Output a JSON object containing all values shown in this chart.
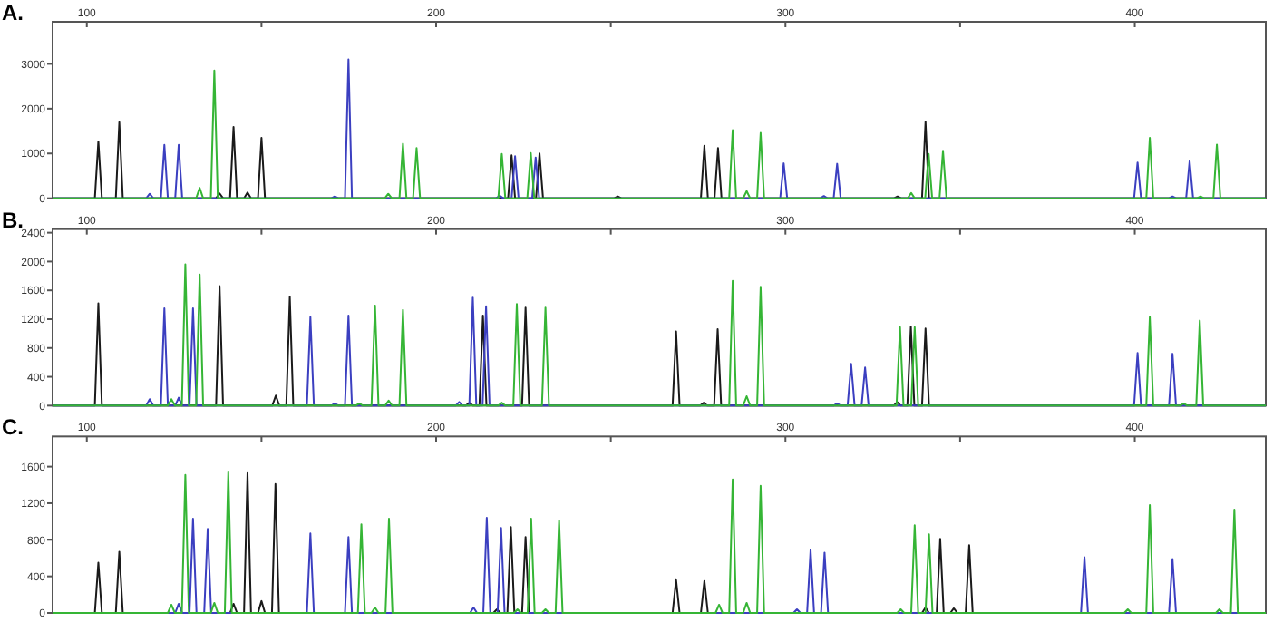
{
  "chart_data": [
    {
      "type": "line",
      "title": "A.",
      "xlim": [
        90.2,
        437.5
      ],
      "xticks": [
        100,
        {
          "value": 150,
          "label": null
        },
        200,
        {
          "value": 250,
          "label": null
        },
        300,
        {
          "value": 350,
          "label": null
        },
        400
      ],
      "ylim": [
        0,
        3940
      ],
      "yticks": [
        0,
        1000,
        2000,
        3000
      ],
      "series": [
        {
          "color": "#1a1a1a",
          "x": [
            90.2,
            102.3,
            103.3,
            104.3,
            108.3,
            109.3,
            110.3,
            137,
            138,
            139,
            141,
            142,
            143,
            145,
            146,
            147,
            149,
            150,
            151,
            220.6,
            221.6,
            222.6,
            228.6,
            229.6,
            230.6,
            251,
            252,
            253,
            275.8,
            276.8,
            277.8,
            279.7,
            280.7,
            281.7,
            331.1,
            332.1,
            333.1,
            339.1,
            340.1,
            341.1,
            437.5
          ],
          "values": [
            0,
            0,
            1270,
            0,
            0,
            1700,
            0,
            0,
            110,
            0,
            0,
            1590,
            0,
            0,
            130,
            0,
            0,
            1350,
            0,
            0,
            960,
            0,
            0,
            1000,
            0,
            0,
            40,
            0,
            0,
            1170,
            0,
            0,
            1120,
            0,
            0,
            40,
            0,
            0,
            1710,
            0,
            0
          ]
        },
        {
          "color": "#3b3fc0",
          "x": [
            90.2,
            117,
            118,
            119,
            121.2,
            122.2,
            123.2,
            125.3,
            126.3,
            127.3,
            170,
            171,
            172,
            173.9,
            174.9,
            175.9,
            217.2,
            218.2,
            219.2,
            221.6,
            222.6,
            223.6,
            227.5,
            228.5,
            229.5,
            298.5,
            299.5,
            300.5,
            310,
            311,
            312,
            313.8,
            314.8,
            315.8,
            399.8,
            400.8,
            401.8,
            409.8,
            410.8,
            411.8,
            414.7,
            415.7,
            416.7,
            437.5
          ],
          "values": [
            0,
            0,
            100,
            0,
            0,
            1190,
            0,
            0,
            1190,
            0,
            0,
            40,
            0,
            0,
            3100,
            0,
            0,
            60,
            0,
            0,
            940,
            0,
            0,
            910,
            0,
            0,
            780,
            0,
            0,
            50,
            0,
            0,
            770,
            0,
            0,
            800,
            0,
            0,
            40,
            0,
            0,
            830,
            0,
            0
          ]
        },
        {
          "color": "#35b535",
          "x": [
            90.2,
            131.3,
            132.3,
            133.3,
            135.5,
            136.5,
            137.5,
            185.3,
            186.3,
            187.3,
            189.5,
            190.5,
            191.5,
            193.4,
            194.4,
            195.4,
            217.8,
            218.8,
            219.8,
            226.1,
            227.1,
            228.1,
            283.9,
            284.9,
            285.9,
            287.9,
            288.9,
            289.9,
            291.9,
            292.9,
            293.9,
            335,
            336,
            337,
            340,
            341,
            342,
            344.1,
            345.1,
            346.1,
            403.3,
            404.3,
            405.3,
            417.8,
            418.8,
            419.8,
            422.5,
            423.5,
            424.5,
            437.5
          ],
          "values": [
            0,
            0,
            230,
            0,
            0,
            2850,
            0,
            0,
            100,
            0,
            0,
            1220,
            0,
            0,
            1120,
            0,
            0,
            990,
            0,
            0,
            1010,
            0,
            0,
            1520,
            0,
            0,
            160,
            0,
            0,
            1460,
            0,
            0,
            120,
            0,
            0,
            990,
            0,
            0,
            1060,
            0,
            0,
            1350,
            0,
            0,
            40,
            0,
            0,
            1200,
            0,
            0
          ]
        }
      ]
    },
    {
      "type": "line",
      "title": "B.",
      "xlim": [
        90.2,
        437.5
      ],
      "xticks": [
        100,
        {
          "value": 150,
          "label": null
        },
        200,
        {
          "value": 250,
          "label": null
        },
        300,
        {
          "value": 350,
          "label": null
        },
        400
      ],
      "ylim": [
        0,
        2450
      ],
      "yticks": [
        0,
        400,
        800,
        1200,
        1600,
        2000,
        2400
      ],
      "series": [
        {
          "color": "#1a1a1a",
          "x": [
            90.2,
            102.3,
            103.3,
            104.3,
            137,
            138,
            139,
            153.1,
            154.1,
            155.1,
            157.1,
            158.1,
            159.1,
            208.5,
            209.5,
            210.5,
            212.4,
            213.4,
            214.4,
            224.6,
            225.6,
            226.6,
            267.7,
            268.7,
            269.7,
            275.6,
            276.6,
            277.6,
            279.6,
            280.6,
            281.6,
            331,
            332,
            333,
            334.9,
            335.9,
            336.9,
            339.1,
            340.1,
            341.1,
            437.5
          ],
          "values": [
            0,
            0,
            1420,
            0,
            0,
            1660,
            0,
            0,
            140,
            0,
            0,
            1510,
            0,
            0,
            40,
            0,
            0,
            1250,
            0,
            0,
            1360,
            0,
            0,
            1030,
            0,
            0,
            40,
            0,
            0,
            1060,
            0,
            0,
            50,
            0,
            0,
            1100,
            0,
            0,
            1070,
            0,
            0
          ]
        },
        {
          "color": "#3b3fc0",
          "x": [
            90.2,
            117,
            118,
            119,
            121.2,
            122.2,
            123.2,
            125.3,
            126.3,
            127.3,
            129.4,
            130.4,
            131.4,
            163,
            164,
            165,
            170,
            171,
            172,
            173.9,
            174.9,
            175.9,
            205.6,
            206.6,
            207.6,
            209.5,
            210.5,
            211.5,
            213.3,
            214.3,
            215.3,
            313.8,
            314.8,
            315.8,
            317.8,
            318.8,
            319.8,
            321.8,
            322.8,
            323.8,
            399.8,
            400.8,
            401.8,
            409.8,
            410.8,
            411.8,
            437.5
          ],
          "values": [
            0,
            0,
            90,
            0,
            0,
            1350,
            0,
            0,
            110,
            0,
            0,
            1350,
            0,
            0,
            1230,
            0,
            0,
            30,
            0,
            0,
            1250,
            0,
            0,
            50,
            0,
            0,
            1500,
            0,
            0,
            1380,
            0,
            0,
            30,
            0,
            0,
            580,
            0,
            0,
            530,
            0,
            0,
            730,
            0,
            0,
            720,
            0,
            0
          ]
        },
        {
          "color": "#35b535",
          "x": [
            90.2,
            123.2,
            124.2,
            125.2,
            127.2,
            128.2,
            129.2,
            131.3,
            132.3,
            133.3,
            177,
            178,
            179,
            181.5,
            182.5,
            183.5,
            185.4,
            186.4,
            187.4,
            189.5,
            190.5,
            191.5,
            217.8,
            218.8,
            219.8,
            222.1,
            223.1,
            224.1,
            230.3,
            231.3,
            232.3,
            283.9,
            284.9,
            285.9,
            287.9,
            288.9,
            289.9,
            291.9,
            292.9,
            293.9,
            331.8,
            332.8,
            333.8,
            336,
            337,
            338,
            403.3,
            404.3,
            405.3,
            413,
            414,
            415,
            417.6,
            418.6,
            419.6,
            437.5
          ],
          "values": [
            0,
            0,
            90,
            0,
            0,
            1960,
            0,
            0,
            1820,
            0,
            0,
            30,
            0,
            0,
            1390,
            0,
            0,
            70,
            0,
            0,
            1330,
            0,
            0,
            40,
            0,
            0,
            1410,
            0,
            0,
            1360,
            0,
            0,
            1730,
            0,
            0,
            130,
            0,
            0,
            1650,
            0,
            0,
            1090,
            0,
            0,
            1090,
            0,
            0,
            1230,
            0,
            0,
            30,
            0,
            0,
            1180,
            0,
            0
          ]
        }
      ]
    },
    {
      "type": "line",
      "title": "C.",
      "xlim": [
        90.2,
        437.5
      ],
      "xticks": [
        100,
        {
          "value": 150,
          "label": null
        },
        200,
        {
          "value": 250,
          "label": null
        },
        300,
        {
          "value": 350,
          "label": null
        },
        400
      ],
      "ylim": [
        0,
        1930
      ],
      "yticks": [
        0,
        400,
        800,
        1200,
        1600
      ],
      "series": [
        {
          "color": "#1a1a1a",
          "x": [
            90.2,
            102.3,
            103.3,
            104.3,
            108.3,
            109.3,
            110.3,
            141,
            142,
            143,
            145,
            146,
            147,
            149,
            150,
            151,
            153,
            154,
            155,
            216.4,
            217.4,
            218.4,
            220.4,
            221.4,
            222.4,
            224.6,
            225.6,
            226.6,
            267.7,
            268.7,
            269.7,
            275.8,
            276.8,
            277.8,
            339.1,
            340.1,
            341.1,
            343.3,
            344.3,
            345.3,
            347.2,
            348.2,
            349.2,
            351.6,
            352.6,
            353.6,
            437.5
          ],
          "values": [
            0,
            0,
            550,
            0,
            0,
            670,
            0,
            0,
            100,
            0,
            0,
            1530,
            0,
            0,
            130,
            0,
            0,
            1410,
            0,
            0,
            40,
            0,
            0,
            940,
            0,
            0,
            830,
            0,
            0,
            360,
            0,
            0,
            350,
            0,
            0,
            60,
            0,
            0,
            810,
            0,
            0,
            50,
            0,
            0,
            740,
            0,
            0
          ]
        },
        {
          "color": "#3b3fc0",
          "x": [
            90.2,
            125.3,
            126.3,
            127.3,
            129.4,
            130.4,
            131.4,
            133.6,
            134.6,
            135.6,
            163,
            164,
            165,
            173.9,
            174.9,
            175.9,
            209.7,
            210.7,
            211.7,
            213.5,
            214.5,
            215.5,
            217.6,
            218.6,
            219.6,
            302.3,
            303.3,
            304.3,
            306.2,
            307.2,
            308.2,
            310.2,
            311.2,
            312.2,
            384.6,
            385.6,
            386.6,
            409.8,
            410.8,
            411.8,
            437.5
          ],
          "values": [
            0,
            0,
            100,
            0,
            0,
            1030,
            0,
            0,
            920,
            0,
            0,
            870,
            0,
            0,
            830,
            0,
            0,
            60,
            0,
            0,
            1040,
            0,
            0,
            930,
            0,
            0,
            40,
            0,
            0,
            690,
            0,
            0,
            660,
            0,
            0,
            610,
            0,
            0,
            590,
            0,
            0
          ]
        },
        {
          "color": "#35b535",
          "x": [
            90.2,
            123.2,
            124.2,
            125.2,
            127.2,
            128.2,
            129.2,
            135.5,
            136.5,
            137.5,
            139.5,
            140.5,
            141.5,
            177.6,
            178.6,
            179.6,
            181.5,
            182.5,
            183.5,
            185.5,
            186.5,
            187.5,
            222.3,
            223.3,
            224.3,
            226.2,
            227.2,
            228.2,
            230.3,
            231.3,
            232.3,
            234.2,
            235.2,
            236.2,
            280,
            281,
            282,
            283.9,
            284.9,
            285.9,
            287.9,
            288.9,
            289.9,
            291.9,
            292.9,
            293.9,
            332,
            333,
            334,
            336,
            337,
            338,
            340.1,
            341.1,
            342.1,
            397,
            398,
            399,
            403.3,
            404.3,
            405.3,
            423.2,
            424.2,
            425.2,
            427.5,
            428.5,
            429.5,
            437.5
          ],
          "values": [
            0,
            0,
            90,
            0,
            0,
            1510,
            0,
            0,
            110,
            0,
            0,
            1540,
            0,
            0,
            970,
            0,
            0,
            60,
            0,
            0,
            1030,
            0,
            0,
            40,
            0,
            0,
            1030,
            0,
            0,
            40,
            0,
            0,
            1010,
            0,
            0,
            90,
            0,
            0,
            1460,
            0,
            0,
            110,
            0,
            0,
            1390,
            0,
            0,
            40,
            0,
            0,
            960,
            0,
            0,
            860,
            0,
            0,
            40,
            0,
            0,
            1180,
            0,
            0,
            40,
            0,
            0,
            1130,
            0,
            0
          ]
        }
      ]
    }
  ]
}
